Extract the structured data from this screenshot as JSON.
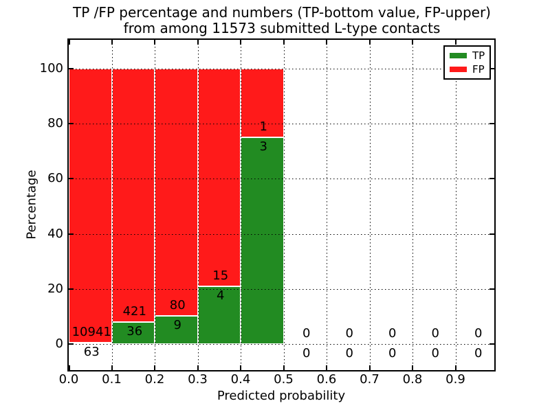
{
  "title": {
    "line1": "TP /FP percentage and numbers (TP-bottom value, FP-upper)",
    "line2": "from among 11573 submitted L-type contacts"
  },
  "axes": {
    "xlabel": "Predicted probability",
    "ylabel": "Percentage",
    "ytick_labels": [
      "0",
      "20",
      "40",
      "60",
      "80",
      "100"
    ],
    "ytick_values": [
      0,
      20,
      40,
      60,
      80,
      100
    ],
    "xtick_labels": [
      "0.0",
      "0.1",
      "0.2",
      "0.3",
      "0.4",
      "0.5",
      "0.6",
      "0.7",
      "0.8",
      "0.9"
    ],
    "xtick_values": [
      0,
      0.1,
      0.2,
      0.3,
      0.4,
      0.5,
      0.6,
      0.7,
      0.8,
      0.9
    ]
  },
  "legend": {
    "position": "upper right",
    "items": [
      {
        "label": "TP",
        "color": "#228b22"
      },
      {
        "label": "FP",
        "color": "#ff1a1a"
      }
    ]
  },
  "colors": {
    "tp": "#228b22",
    "fp": "#ff1a1a",
    "grid": "#000000",
    "text": "#000000",
    "background": "#ffffff"
  },
  "chart_data": {
    "type": "bar",
    "stacked": true,
    "normalized_to_percent": true,
    "title": "TP /FP percentage and numbers (TP-bottom value, FP-upper) from among 11573 submitted L-type contacts",
    "xlabel": "Predicted probability",
    "ylabel": "Percentage",
    "total_submitted": 11573,
    "bin_edges": [
      0.0,
      0.1,
      0.2,
      0.3,
      0.4,
      0.5,
      0.6,
      0.7,
      0.8,
      0.9,
      1.0
    ],
    "series": [
      {
        "name": "TP",
        "color": "#228b22",
        "counts": [
          63,
          36,
          9,
          4,
          3,
          0,
          0,
          0,
          0,
          0
        ]
      },
      {
        "name": "FP",
        "color": "#ff1a1a",
        "counts": [
          10941,
          421,
          80,
          15,
          1,
          0,
          0,
          0,
          0,
          0
        ]
      }
    ],
    "tp_percent_by_bin": [
      0.57,
      7.88,
      10.11,
      21.05,
      75.0,
      null,
      null,
      null,
      null,
      null
    ],
    "ylim": [
      -10,
      110
    ],
    "xlim": [
      0,
      1.0
    ],
    "grid": "dotted",
    "legend_position": "upper right"
  }
}
